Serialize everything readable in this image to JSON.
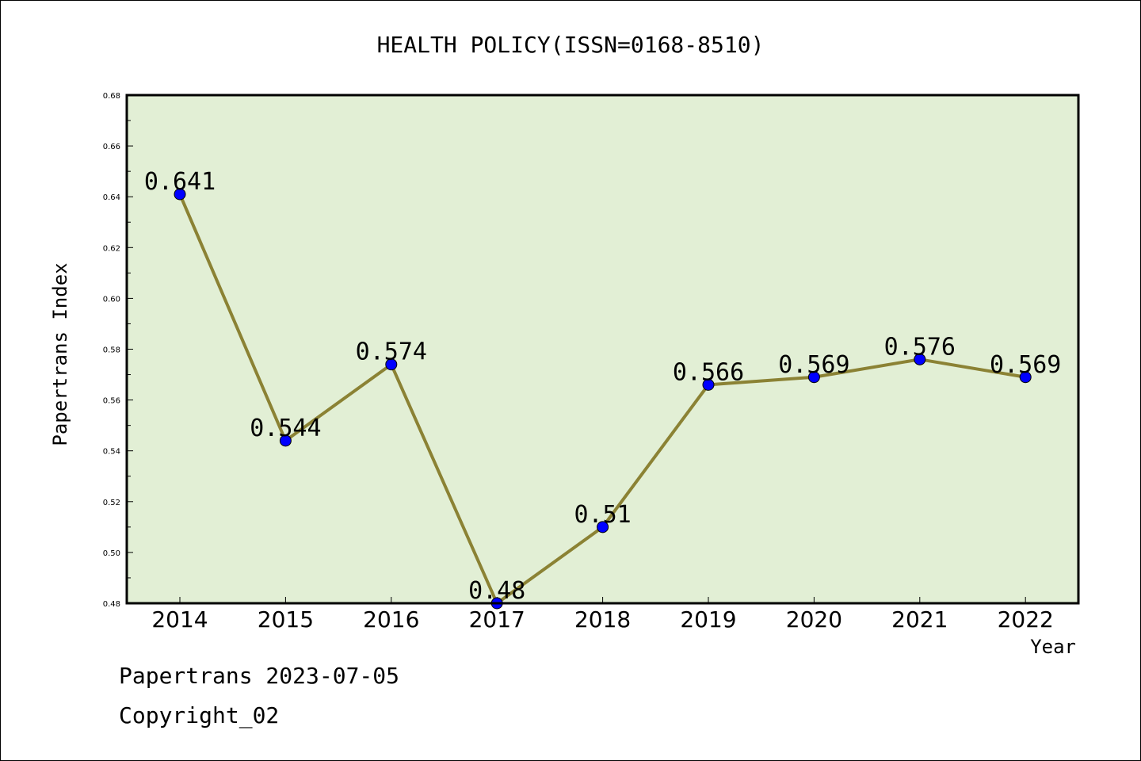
{
  "chart_data": {
    "type": "line",
    "title": "HEALTH POLICY(ISSN=0168-8510)",
    "xlabel": "Year",
    "ylabel": "Papertrans Index",
    "categories": [
      "2014",
      "2015",
      "2016",
      "2017",
      "2018",
      "2019",
      "2020",
      "2021",
      "2022"
    ],
    "series": [
      {
        "values": [
          0.641,
          0.544,
          0.574,
          0.48,
          0.51,
          0.566,
          0.569,
          0.576,
          0.569
        ],
        "data_labels": [
          "0.641",
          "0.544",
          "0.574",
          "0.48",
          "0.51",
          "0.566",
          "0.569",
          "0.576",
          "0.569"
        ]
      }
    ],
    "ylim": [
      0.48,
      0.68
    ],
    "yticks": [
      "0.48",
      "0.50",
      "0.52",
      "0.54",
      "0.56",
      "0.58",
      "0.60",
      "0.62",
      "0.64",
      "0.66",
      "0.68"
    ],
    "grid": false,
    "legend": "none",
    "colors": {
      "plot_background": "#e2efd5",
      "line": "#8b8234",
      "marker": "#0000ff"
    }
  },
  "footer": {
    "line1": "Papertrans 2023-07-05",
    "line2": "Copyright_02"
  }
}
